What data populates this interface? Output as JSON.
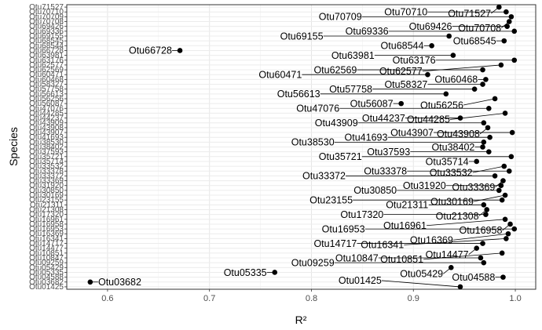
{
  "chart_data": {
    "type": "scatter",
    "title": "",
    "xlabel": "R²",
    "ylabel": "Species",
    "xlim": [
      0.56,
      1.02
    ],
    "xticks": [
      0.6,
      0.7,
      0.8,
      0.9,
      1.0
    ],
    "xtick_labels": [
      "0.6",
      "0.7",
      "0.8",
      "0.9",
      "1.0"
    ],
    "grid": true,
    "point_color": "#000000",
    "species_top_to_bottom": [
      "Otu71527",
      "Otu70710",
      "Otu70709",
      "Otu70708",
      "Otu69426",
      "Otu69336",
      "Otu69155",
      "Otu68545",
      "Otu68544",
      "Otu66728",
      "Otu63981",
      "Otu63176",
      "Otu62577",
      "Otu62569",
      "Otu60471",
      "Otu60468",
      "Otu58327",
      "Otu57758",
      "Otu56613",
      "Otu56256",
      "Otu56087",
      "Otu47076",
      "Otu44285",
      "Otu44237",
      "Otu43909",
      "Otu43908",
      "Otu43907",
      "Otu41693",
      "Otu38530",
      "Otu38402",
      "Otu37593",
      "Otu35721",
      "Otu35714",
      "Otu33532",
      "Otu33378",
      "Otu33372",
      "Otu33369",
      "Otu31920",
      "Otu30850",
      "Otu30169",
      "Otu23155",
      "Otu21311",
      "Otu21308",
      "Otu17320",
      "Otu16961",
      "Otu16958",
      "Otu16953",
      "Otu16369",
      "Otu16341",
      "Otu14717",
      "Otu14477",
      "Otu10851",
      "Otu10847",
      "Otu09259",
      "Otu05429",
      "Otu05335",
      "Otu04588",
      "Otu03682",
      "Otu01425"
    ],
    "points": [
      {
        "species": "Otu71527",
        "r2": 0.984,
        "label": "Otu71527"
      },
      {
        "species": "Otu70710",
        "r2": 0.991,
        "label": "Otu70710"
      },
      {
        "species": "Otu70709",
        "r2": 0.996,
        "label": "Otu70709"
      },
      {
        "species": "Otu70708",
        "r2": 0.994,
        "label": "Otu70708"
      },
      {
        "species": "Otu69426",
        "r2": 0.992,
        "label": "Otu69426"
      },
      {
        "species": "Otu69336",
        "r2": 0.999,
        "label": "Otu69336"
      },
      {
        "species": "Otu69155",
        "r2": 0.935,
        "label": "Otu69155"
      },
      {
        "species": "Otu68545",
        "r2": 0.989,
        "label": "Otu68545"
      },
      {
        "species": "Otu68544",
        "r2": 0.918,
        "label": "Otu68544"
      },
      {
        "species": "Otu66728",
        "r2": 0.671,
        "label": "Otu66728"
      },
      {
        "species": "Otu63981",
        "r2": 0.939,
        "label": "Otu63981"
      },
      {
        "species": "Otu63176",
        "r2": 0.999,
        "label": "Otu63176"
      },
      {
        "species": "Otu62577",
        "r2": 0.986,
        "label": "Otu62577"
      },
      {
        "species": "Otu62569",
        "r2": 0.968,
        "label": "Otu62569"
      },
      {
        "species": "Otu60471",
        "r2": 0.914,
        "label": "Otu60471"
      },
      {
        "species": "Otu60468",
        "r2": 0.971,
        "label": "Otu60468"
      },
      {
        "species": "Otu58327",
        "r2": 0.968,
        "label": "Otu58327"
      },
      {
        "species": "Otu57758",
        "r2": 0.96,
        "label": "Otu57758"
      },
      {
        "species": "Otu56613",
        "r2": 0.932,
        "label": "Otu56613"
      },
      {
        "species": "Otu56256",
        "r2": 0.98,
        "label": "Otu56256"
      },
      {
        "species": "Otu56087",
        "r2": 0.888,
        "label": "Otu56087"
      },
      {
        "species": "Otu47076",
        "r2": 0.974,
        "label": "Otu47076"
      },
      {
        "species": "Otu44285",
        "r2": 0.99,
        "label": "Otu44285"
      },
      {
        "species": "Otu44237",
        "r2": 0.946,
        "label": "Otu44237"
      },
      {
        "species": "Otu43909",
        "r2": 0.969,
        "label": "Otu43909"
      },
      {
        "species": "Otu43908",
        "r2": 0.973,
        "label": "Otu43908"
      },
      {
        "species": "Otu43907",
        "r2": 0.997,
        "label": "Otu43907"
      },
      {
        "species": "Otu41693",
        "r2": 0.975,
        "label": "Otu41693"
      },
      {
        "species": "Otu38530",
        "r2": 0.969,
        "label": "Otu38530"
      },
      {
        "species": "Otu38402",
        "r2": 0.968,
        "label": "Otu38402"
      },
      {
        "species": "Otu37593",
        "r2": 0.974,
        "label": "Otu37593"
      },
      {
        "species": "Otu35721",
        "r2": 0.996,
        "label": "Otu35721"
      },
      {
        "species": "Otu35714",
        "r2": 0.962,
        "label": "Otu35714"
      },
      {
        "species": "Otu33532",
        "r2": 0.989,
        "label": "Otu33532"
      },
      {
        "species": "Otu33378",
        "r2": 0.994,
        "label": "Otu33378"
      },
      {
        "species": "Otu33372",
        "r2": 0.98,
        "label": "Otu33372"
      },
      {
        "species": "Otu33369",
        "r2": 0.988,
        "label": "Otu33369"
      },
      {
        "species": "Otu31920",
        "r2": 0.986,
        "label": "Otu31920"
      },
      {
        "species": "Otu30850",
        "r2": 0.984,
        "label": "Otu30850"
      },
      {
        "species": "Otu30169",
        "r2": 0.99,
        "label": "Otu30169"
      },
      {
        "species": "Otu23155",
        "r2": 0.987,
        "label": "Otu23155"
      },
      {
        "species": "Otu21311",
        "r2": 0.969,
        "label": "Otu21311"
      },
      {
        "species": "Otu21308",
        "r2": 0.972,
        "label": "Otu21308"
      },
      {
        "species": "Otu17320",
        "r2": 0.971,
        "label": "Otu17320"
      },
      {
        "species": "Otu16961",
        "r2": 0.99,
        "label": "Otu16961"
      },
      {
        "species": "Otu16958",
        "r2": 0.995,
        "label": "Otu16958"
      },
      {
        "species": "Otu16953",
        "r2": 0.999,
        "label": "Otu16953"
      },
      {
        "species": "Otu16369",
        "r2": 0.993,
        "label": "Otu16369"
      },
      {
        "species": "Otu16341",
        "r2": 0.991,
        "label": "Otu16341"
      },
      {
        "species": "Otu14717",
        "r2": 0.968,
        "label": "Otu14717"
      },
      {
        "species": "Otu14477",
        "r2": 0.962,
        "label": "Otu14477"
      },
      {
        "species": "Otu10851",
        "r2": 0.987,
        "label": "Otu10851"
      },
      {
        "species": "Otu10847",
        "r2": 0.966,
        "label": "Otu10847"
      },
      {
        "species": "Otu09259",
        "r2": 0.969,
        "label": "Otu09259"
      },
      {
        "species": "Otu05429",
        "r2": 0.937,
        "label": "Otu05429"
      },
      {
        "species": "Otu05335",
        "r2": 0.764,
        "label": "Otu05335"
      },
      {
        "species": "Otu04588",
        "r2": 0.988,
        "label": "Otu04588"
      },
      {
        "species": "Otu03682",
        "r2": 0.583,
        "label": "Otu03682"
      },
      {
        "species": "Otu01425",
        "r2": 0.946,
        "label": "Otu01425"
      }
    ]
  }
}
